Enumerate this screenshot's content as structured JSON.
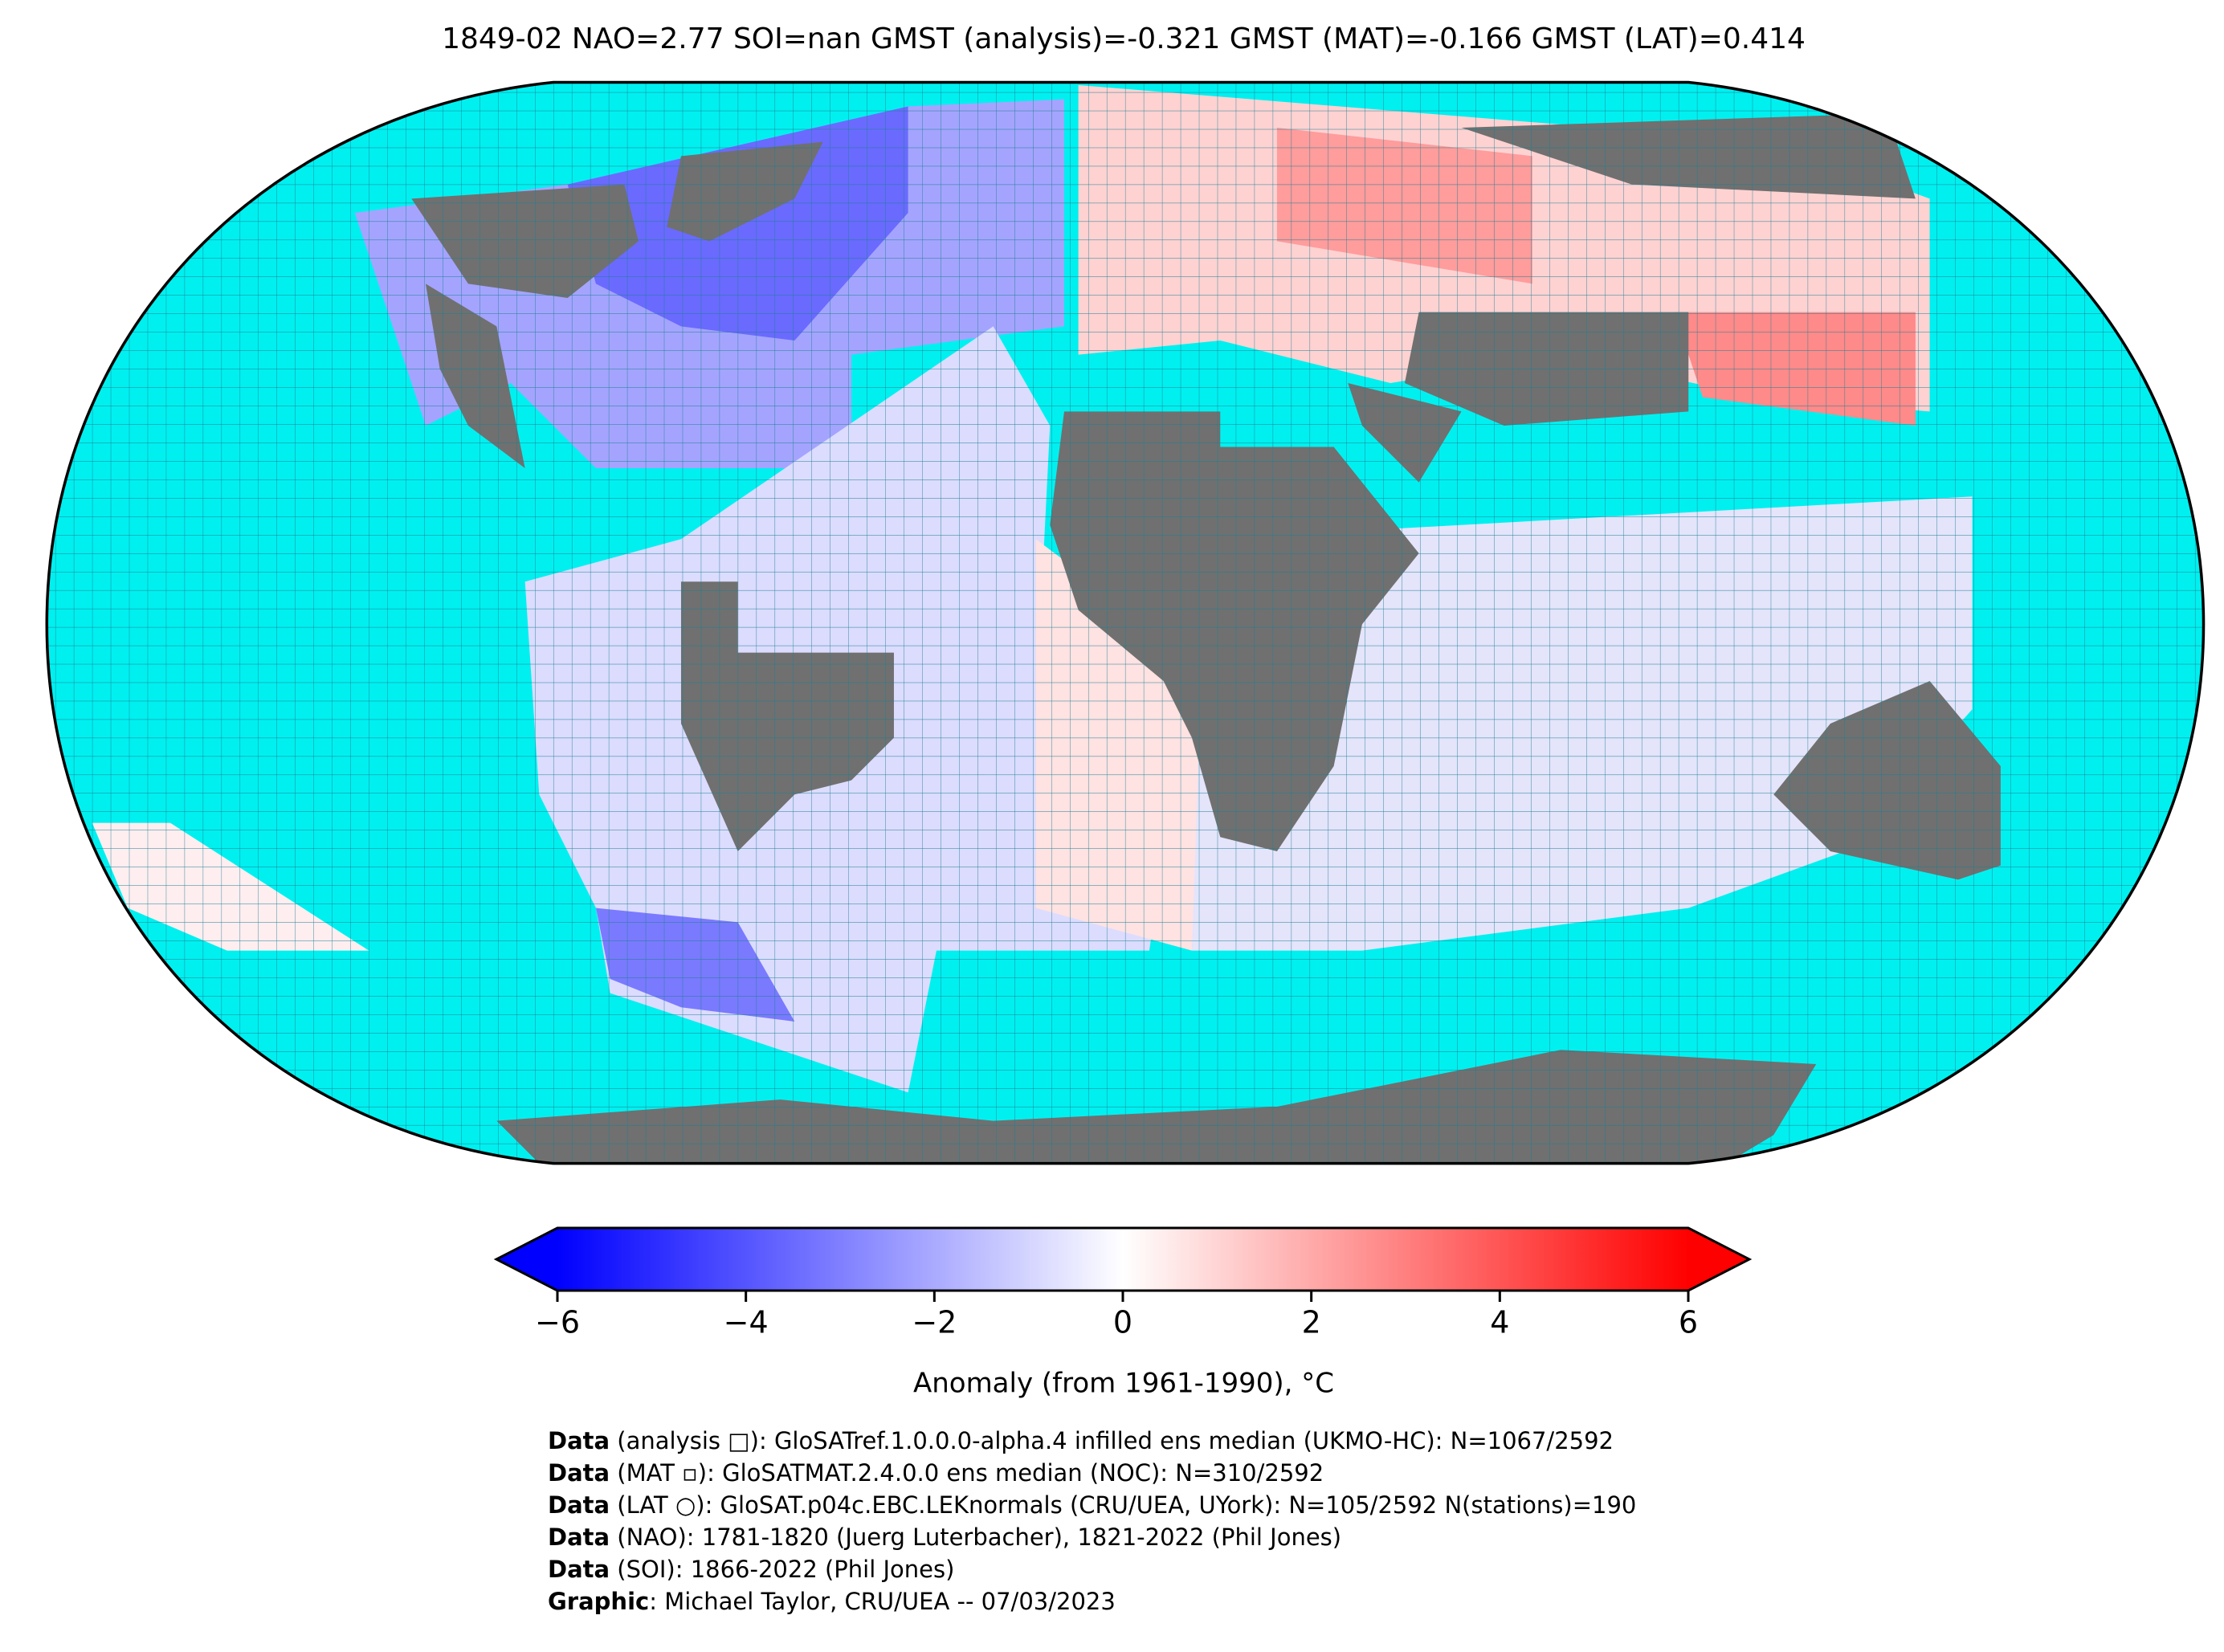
{
  "title": "1849-02 NAO=2.77 SOI=nan GMST (analysis)=-0.321 GMST (MAT)=-0.166 GMST (LAT)=0.414",
  "chart_data": {
    "type": "colorbar",
    "label": "Anomaly (from 1961-1990), °C",
    "colormap": [
      "#0000ff",
      "#ffffff",
      "#ff0000"
    ],
    "xlim": [
      -6,
      6
    ],
    "xticks": [
      {
        "value": -6,
        "label": "−6"
      },
      {
        "value": -4,
        "label": "−4"
      },
      {
        "value": -2,
        "label": "−2"
      },
      0,
      2,
      4,
      6
    ]
  },
  "footer": [
    {
      "label": "Data",
      "text": " (analysis □): GloSATref.1.0.0.0-alpha.4 infilled ens median (UKMO-HC): N=1067/2592"
    },
    {
      "label": "Data",
      "text": " (MAT ▫): GloSATMAT.2.4.0.0 ens median (NOC): N=310/2592"
    },
    {
      "label": "Data",
      "text": " (LAT ○): GloSAT.p04c.EBC.LEKnormals (CRU/UEA, UYork): N=105/2592 N(stations)=190"
    },
    {
      "label": "Data",
      "text": " (NAO): 1781-1820 (Juerg Luterbacher), 1821-2022 (Phil Jones)"
    },
    {
      "label": "Data",
      "text": " (SOI): 1866-2022 (Phil Jones)"
    },
    {
      "label": "Graphic",
      "text": ": Michael Taylor, CRU/UEA -- 07/03/2023"
    }
  ]
}
